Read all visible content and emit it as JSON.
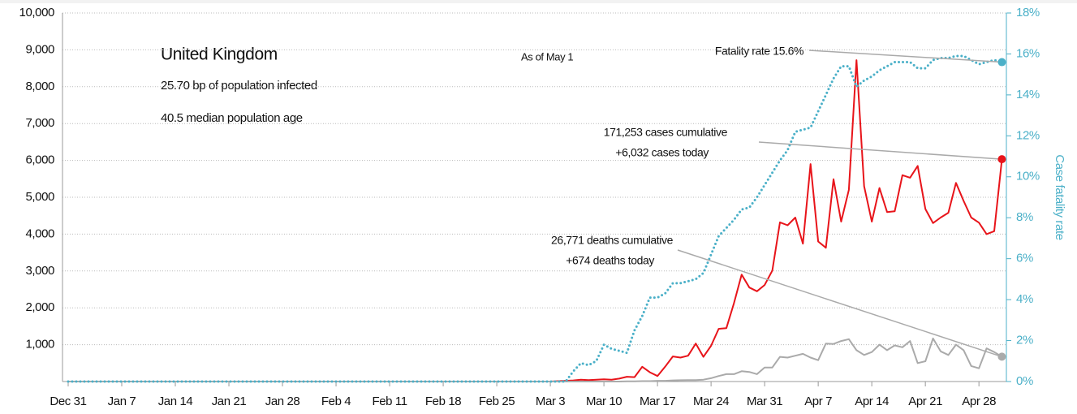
{
  "chart_data": {
    "type": "line",
    "annotations": [
      "United Kingdom",
      "25.70 bp of population infected",
      "40.5 median population age",
      "As of May 1",
      "Fatality rate 15.6%",
      "171,253 cases cumulative",
      "+6,032 cases today",
      "26,771 deaths cumulative",
      "+674 deaths today"
    ],
    "y2label": "Case fatality rate",
    "categories": [
      "Dec 31",
      null,
      null,
      null,
      null,
      null,
      null,
      "Jan 7",
      null,
      null,
      null,
      null,
      null,
      null,
      "Jan 14",
      null,
      null,
      null,
      null,
      null,
      null,
      "Jan 21",
      null,
      null,
      null,
      null,
      null,
      null,
      "Jan 28",
      null,
      null,
      null,
      null,
      null,
      null,
      "Feb 4",
      null,
      null,
      null,
      null,
      null,
      null,
      "Feb 11",
      null,
      null,
      null,
      null,
      null,
      null,
      "Feb 18",
      null,
      null,
      null,
      null,
      null,
      null,
      "Feb 25",
      null,
      null,
      null,
      null,
      null,
      null,
      "Mar 3",
      null,
      null,
      null,
      null,
      null,
      null,
      "Mar 10",
      null,
      null,
      null,
      null,
      null,
      null,
      "Mar 17",
      null,
      null,
      null,
      null,
      null,
      null,
      "Mar 24",
      null,
      null,
      null,
      null,
      null,
      null,
      "Mar 31",
      null,
      null,
      null,
      null,
      null,
      null,
      "Apr 7",
      null,
      null,
      null,
      null,
      null,
      null,
      "Apr 14",
      null,
      null,
      null,
      null,
      null,
      null,
      "Apr 21",
      null,
      null,
      null,
      null,
      null,
      null,
      "Apr 28",
      null,
      null,
      null
    ],
    "series": [
      {
        "color": "#e8141a",
        "values": [
          0,
          0,
          0,
          0,
          0,
          0,
          0,
          0,
          0,
          0,
          0,
          0,
          0,
          0,
          0,
          0,
          0,
          0,
          0,
          0,
          0,
          0,
          0,
          0,
          0,
          0,
          0,
          0,
          0,
          0,
          0,
          0,
          0,
          0,
          0,
          0,
          0,
          0,
          0,
          0,
          0,
          0,
          0,
          0,
          0,
          0,
          0,
          0,
          0,
          0,
          0,
          0,
          0,
          0,
          0,
          0,
          0,
          0,
          0,
          0,
          0,
          0,
          0,
          0,
          10,
          20,
          30,
          50,
          40,
          50,
          60,
          50,
          80,
          130,
          120,
          400,
          250,
          150,
          400,
          680,
          650,
          700,
          1030,
          670,
          970,
          1430,
          1450,
          2130,
          2900,
          2550,
          2450,
          2620,
          3010,
          4320,
          4240,
          4450,
          3740,
          5900,
          3800,
          3630,
          5490,
          4340,
          5200,
          8720,
          5300,
          4340,
          5250,
          4600,
          4620,
          5600,
          5530,
          5850,
          4680,
          4300,
          4450,
          4580,
          5390,
          4900,
          4450,
          4310,
          4000,
          4080,
          6032
        ]
      },
      {
        "color": "#aaaaaa",
        "values": [
          0,
          0,
          0,
          0,
          0,
          0,
          0,
          0,
          0,
          0,
          0,
          0,
          0,
          0,
          0,
          0,
          0,
          0,
          0,
          0,
          0,
          0,
          0,
          0,
          0,
          0,
          0,
          0,
          0,
          0,
          0,
          0,
          0,
          0,
          0,
          0,
          0,
          0,
          0,
          0,
          0,
          0,
          0,
          0,
          0,
          0,
          0,
          0,
          0,
          0,
          0,
          0,
          0,
          0,
          0,
          0,
          0,
          0,
          0,
          0,
          0,
          0,
          0,
          0,
          0,
          0,
          0,
          0,
          0,
          0,
          0,
          0,
          0,
          5,
          5,
          10,
          10,
          20,
          20,
          30,
          35,
          40,
          40,
          50,
          90,
          150,
          200,
          200,
          280,
          260,
          200,
          380,
          380,
          670,
          650,
          700,
          750,
          650,
          580,
          1030,
          1020,
          1100,
          1150,
          850,
          720,
          800,
          1000,
          850,
          980,
          930,
          1100,
          500,
          550,
          1170,
          820,
          720,
          1000,
          850,
          420,
          360,
          900,
          800,
          674
        ]
      },
      {
        "color": "#4bb0c8",
        "axis": "y2",
        "dotted": true,
        "values": [
          0,
          0,
          0,
          0,
          0,
          0,
          0,
          0,
          0,
          0,
          0,
          0,
          0,
          0,
          0,
          0,
          0,
          0,
          0,
          0,
          0,
          0,
          0,
          0,
          0,
          0,
          0,
          0,
          0,
          0,
          0,
          0,
          0,
          0,
          0,
          0,
          0,
          0,
          0,
          0,
          0,
          0,
          0,
          0,
          0,
          0,
          0,
          0,
          0,
          0,
          0,
          0,
          0,
          0,
          0,
          0,
          0,
          0,
          0,
          0,
          0,
          0,
          0,
          0,
          0,
          0,
          0.5,
          0.9,
          0.8,
          1.0,
          1.8,
          1.6,
          1.5,
          1.4,
          2.5,
          3.2,
          4.1,
          4.1,
          4.3,
          4.8,
          4.8,
          4.9,
          5.0,
          5.3,
          6.2,
          7.1,
          7.5,
          7.9,
          8.4,
          8.5,
          9.0,
          9.6,
          10.2,
          10.8,
          11.3,
          12.2,
          12.3,
          12.4,
          13.2,
          14.0,
          14.8,
          15.4,
          15.4,
          14.4,
          14.7,
          14.9,
          15.2,
          15.4,
          15.6,
          15.6,
          15.6,
          15.3,
          15.3,
          15.7,
          15.8,
          15.8,
          15.9,
          15.9,
          15.7,
          15.5,
          15.6,
          15.7,
          15.6
        ]
      }
    ],
    "ylim": [
      0,
      10000
    ],
    "yticks": [
      {
        "value": 1000,
        "label": "1,000"
      },
      {
        "value": 2000,
        "label": "2,000"
      },
      {
        "value": 3000,
        "label": "3,000"
      },
      {
        "value": 4000,
        "label": "4,000"
      },
      {
        "value": 5000,
        "label": "5,000"
      },
      {
        "value": 6000,
        "label": "6,000"
      },
      {
        "value": 7000,
        "label": "7,000"
      },
      {
        "value": 8000,
        "label": "8,000"
      },
      {
        "value": 9000,
        "label": "9,000"
      },
      {
        "value": 10000,
        "label": "10,000"
      }
    ],
    "y2lim": [
      0,
      18
    ],
    "y2ticks": [
      {
        "value": 0,
        "label": "0%"
      },
      {
        "value": 2,
        "label": "2%"
      },
      {
        "value": 4,
        "label": "4%"
      },
      {
        "value": 6,
        "label": "6%"
      },
      {
        "value": 8,
        "label": "8%"
      },
      {
        "value": 10,
        "label": "10%"
      },
      {
        "value": 12,
        "label": "12%"
      },
      {
        "value": 14,
        "label": "14%"
      },
      {
        "value": 16,
        "label": "16%"
      },
      {
        "value": 18,
        "label": "18%"
      }
    ],
    "grid": true
  }
}
